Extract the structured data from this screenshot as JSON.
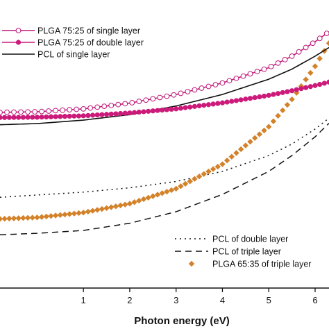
{
  "chart_data": {
    "type": "line",
    "xlabel": "Photon energy (eV)",
    "xlim": [
      -0.8,
      6.3
    ],
    "ylim": [
      0,
      1
    ],
    "x_ticks": [
      1,
      2,
      3,
      4,
      5,
      6
    ],
    "x_tick_labels": [
      "1",
      "2",
      "3",
      "4",
      "5",
      "6"
    ],
    "y_ticks_shown": false,
    "legends": [
      {
        "placement": "top-left",
        "entries": [
          "plga7525-single",
          "plga7525-double",
          "pcl-single"
        ]
      },
      {
        "placement": "bottom-right",
        "entries": [
          "pcl-double",
          "pcl-triple",
          "plga6535-triple"
        ]
      }
    ],
    "series": [
      {
        "key": "plga7525-single",
        "name": "PLGA 75:25 of single layer",
        "color": "#c0177a",
        "line": "solid",
        "marker": "open-circle",
        "x": [
          -0.8,
          0,
          1,
          2,
          3,
          4,
          5,
          5.5,
          6,
          6.3
        ],
        "y": [
          0.61,
          0.612,
          0.622,
          0.642,
          0.672,
          0.712,
          0.765,
          0.805,
          0.855,
          0.89
        ]
      },
      {
        "key": "plga7525-double",
        "name": "PLGA 75:25 of double layer",
        "color": "#cc1a7a",
        "line": "solid",
        "marker": "filled-circle",
        "x": [
          -0.8,
          0,
          1,
          2,
          3,
          4,
          5,
          5.5,
          6,
          6.3
        ],
        "y": [
          0.592,
          0.593,
          0.598,
          0.608,
          0.622,
          0.643,
          0.669,
          0.685,
          0.703,
          0.715
        ]
      },
      {
        "key": "pcl-single",
        "name": "PCL of single layer",
        "color": "#111111",
        "line": "solid",
        "marker": "none",
        "x": [
          -0.8,
          0,
          1,
          2,
          3,
          4,
          5,
          5.5,
          6,
          6.3
        ],
        "y": [
          0.567,
          0.571,
          0.583,
          0.602,
          0.632,
          0.672,
          0.725,
          0.76,
          0.805,
          0.835
        ]
      },
      {
        "key": "pcl-double",
        "name": "PCL of double layer",
        "color": "#111111",
        "line": "dotted",
        "marker": "none",
        "x": [
          -0.8,
          0,
          1,
          2,
          3,
          4,
          5,
          5.5,
          6,
          6.3
        ],
        "y": [
          0.315,
          0.323,
          0.333,
          0.348,
          0.37,
          0.405,
          0.46,
          0.5,
          0.552,
          0.59
        ]
      },
      {
        "key": "pcl-triple",
        "name": "PCL of  triple layer",
        "color": "#111111",
        "line": "dashed",
        "marker": "none",
        "x": [
          -0.8,
          0,
          1,
          2,
          3,
          4,
          5,
          5.5,
          6,
          6.3
        ],
        "y": [
          0.185,
          0.19,
          0.2,
          0.225,
          0.265,
          0.325,
          0.405,
          0.46,
          0.525,
          0.572
        ]
      },
      {
        "key": "plga6535-triple",
        "name": "PLGA 65:35 of triple layer",
        "color": "#d4822a",
        "line": "none",
        "marker": "diamond",
        "x": [
          -0.8,
          0,
          1,
          2,
          3,
          4,
          5,
          5.5,
          6,
          6.3
        ],
        "y": [
          0.24,
          0.245,
          0.262,
          0.293,
          0.345,
          0.43,
          0.56,
          0.655,
          0.77,
          0.85
        ]
      }
    ]
  }
}
